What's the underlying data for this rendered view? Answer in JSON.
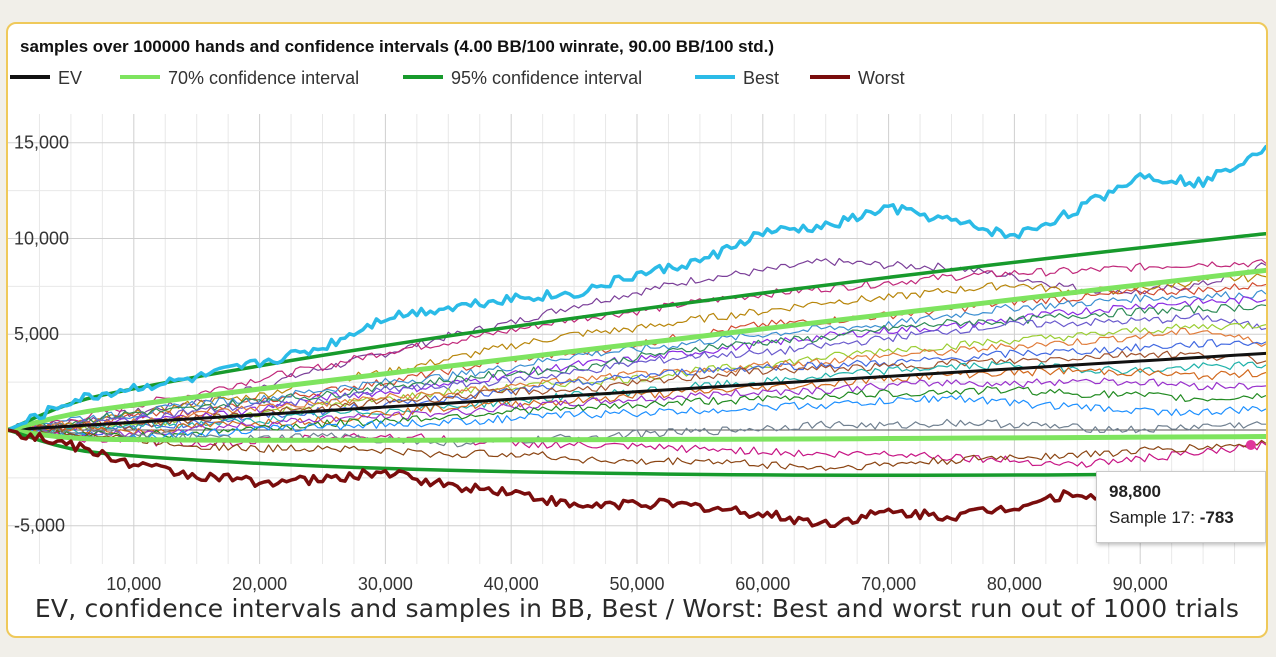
{
  "chart_data": {
    "type": "line",
    "title": "samples over 100000 hands and confidence intervals (4.00 BB/100 winrate, 90.00 BB/100 std.)",
    "caption": "EV, confidence intervals and samples in BB, Best / Worst: Best and worst run out of 1000 trials",
    "xlabel": "",
    "ylabel": "",
    "xlim": [
      0,
      100000
    ],
    "ylim": [
      -7000,
      16500
    ],
    "x_ticks": [
      10000,
      20000,
      30000,
      40000,
      50000,
      60000,
      70000,
      80000,
      90000
    ],
    "x_tick_labels": [
      "10,000",
      "20,000",
      "30,000",
      "40,000",
      "50,000",
      "60,000",
      "70,000",
      "80,000",
      "90,000"
    ],
    "y_ticks": [
      -5000,
      0,
      5000,
      10000,
      15000
    ],
    "y_tick_labels": [
      "-5,000",
      "0",
      "5,000",
      "10,000",
      "15,000"
    ],
    "grid": true,
    "legend_position": "top-left",
    "x": [
      0,
      5000,
      10000,
      15000,
      20000,
      25000,
      30000,
      35000,
      40000,
      45000,
      50000,
      55000,
      60000,
      65000,
      70000,
      75000,
      80000,
      85000,
      90000,
      95000,
      100000
    ],
    "series": [
      {
        "name": "EV",
        "color": "#111111",
        "values": [
          0,
          200,
          400,
          600,
          800,
          1000,
          1200,
          1400,
          1600,
          1800,
          2000,
          2200,
          2400,
          2600,
          2800,
          3000,
          3200,
          3400,
          3600,
          3800,
          4000
        ]
      },
      {
        "name": "70% confidence interval",
        "color": "#7ee45f",
        "values": [
          0,
          860,
          1310,
          1730,
          2140,
          2540,
          2940,
          3330,
          3720,
          4110,
          4500,
          4890,
          5280,
          5660,
          6050,
          6430,
          6810,
          7200,
          7580,
          7960,
          8340
        ]
      },
      {
        "name": "",
        "color": "#7ee45f",
        "values": [
          0,
          -460,
          -510,
          -530,
          -540,
          -540,
          -540,
          -530,
          -520,
          -510,
          -500,
          -490,
          -480,
          -460,
          -450,
          -430,
          -410,
          -400,
          -380,
          -360,
          -340
        ]
      },
      {
        "name": "95% confidence interval",
        "color": "#179a2c",
        "values": [
          0,
          1480,
          2160,
          2780,
          3350,
          3900,
          4410,
          4910,
          5380,
          5840,
          6290,
          6720,
          7150,
          7560,
          7970,
          8360,
          8760,
          9140,
          9510,
          9890,
          10250
        ]
      },
      {
        "name": "",
        "color": "#179a2c",
        "values": [
          0,
          -1080,
          -1360,
          -1580,
          -1750,
          -1900,
          -2010,
          -2110,
          -2180,
          -2240,
          -2290,
          -2320,
          -2350,
          -2360,
          -2370,
          -2360,
          -2360,
          -2340,
          -2310,
          -2290,
          -2250
        ]
      },
      {
        "name": "Best",
        "color": "#2bbbe7",
        "values": [
          0,
          1500,
          2200,
          2700,
          3500,
          4300,
          5900,
          6400,
          6900,
          7100,
          8100,
          8800,
          10300,
          10600,
          11600,
          10900,
          10100,
          11500,
          13300,
          12900,
          14800
        ]
      },
      {
        "name": "Worst",
        "color": "#7a0d0d",
        "values": [
          0,
          -800,
          -1800,
          -2400,
          -2700,
          -2600,
          -2200,
          -2900,
          -3200,
          -4000,
          -3800,
          -4000,
          -4400,
          -4900,
          -4300,
          -4500,
          -4000,
          -3200,
          -4900,
          -4700,
          -5000
        ]
      }
    ],
    "samples": [
      {
        "color": "#7b3f99",
        "values": [
          0,
          400,
          900,
          1500,
          2300,
          3200,
          4000,
          4900,
          5600,
          6500,
          7200,
          7900,
          8300,
          8800,
          8600,
          8500,
          8000,
          7400,
          7200,
          7600,
          8600
        ]
      },
      {
        "color": "#c0287a",
        "values": [
          0,
          500,
          1300,
          1900,
          2700,
          3300,
          4100,
          4600,
          5200,
          5800,
          6200,
          6700,
          7100,
          7400,
          7700,
          8000,
          8200,
          8300,
          8500,
          8700,
          8700
        ]
      },
      {
        "color": "#b8860b",
        "values": [
          0,
          300,
          800,
          1400,
          1800,
          2600,
          3000,
          3700,
          4400,
          5000,
          5300,
          5800,
          6200,
          6700,
          6900,
          7300,
          7600,
          7200,
          7400,
          7800,
          8000
        ]
      },
      {
        "color": "#d14a2f",
        "values": [
          0,
          200,
          700,
          900,
          1500,
          2000,
          2500,
          3100,
          3700,
          4000,
          4500,
          5000,
          5500,
          5700,
          6000,
          6300,
          6700,
          6900,
          7200,
          7300,
          7600
        ]
      },
      {
        "color": "#3c8fd1",
        "values": [
          0,
          600,
          800,
          1400,
          1600,
          2100,
          2500,
          2800,
          3300,
          3900,
          4200,
          4600,
          5000,
          5300,
          5500,
          6000,
          6400,
          6600,
          6900,
          7000,
          7100
        ]
      },
      {
        "color": "#8a2be2",
        "values": [
          0,
          100,
          500,
          700,
          1100,
          1700,
          2000,
          2400,
          2900,
          3400,
          3700,
          4100,
          4500,
          4900,
          5200,
          5400,
          5800,
          6200,
          6500,
          6700,
          6800
        ]
      },
      {
        "color": "#2e8b57",
        "values": [
          0,
          400,
          900,
          1100,
          1600,
          1800,
          2300,
          2600,
          3000,
          3200,
          3800,
          4300,
          4600,
          4800,
          5300,
          5600,
          5700,
          6000,
          6200,
          6300,
          6500
        ]
      },
      {
        "color": "#6a5acd",
        "values": [
          0,
          300,
          600,
          1000,
          1300,
          1500,
          2100,
          2300,
          2600,
          3000,
          3500,
          3900,
          4000,
          4400,
          4800,
          5200,
          5500,
          5600,
          5700,
          5900,
          5300
        ]
      },
      {
        "color": "#9acd32",
        "values": [
          0,
          100,
          300,
          500,
          900,
          1300,
          1600,
          2000,
          2200,
          2500,
          2700,
          3100,
          3400,
          3800,
          4200,
          4400,
          4700,
          4900,
          5200,
          5400,
          5500
        ]
      },
      {
        "color": "#e07b39",
        "values": [
          0,
          300,
          400,
          800,
          1200,
          1400,
          1700,
          1900,
          2300,
          2600,
          2900,
          3000,
          3400,
          3600,
          3900,
          4100,
          4400,
          4600,
          4900,
          5200,
          4500
        ]
      },
      {
        "color": "#4169e1",
        "values": [
          0,
          -200,
          100,
          400,
          700,
          1000,
          1300,
          1700,
          2000,
          2400,
          2800,
          3100,
          3300,
          3400,
          3500,
          3700,
          4000,
          4100,
          4300,
          4500,
          4600
        ]
      },
      {
        "color": "#a0522d",
        "values": [
          0,
          200,
          200,
          600,
          900,
          1100,
          1500,
          1700,
          2000,
          2100,
          2400,
          2800,
          3100,
          3200,
          3300,
          3500,
          3600,
          3800,
          4000,
          3900,
          3600
        ]
      },
      {
        "color": "#20b2aa",
        "values": [
          0,
          -100,
          200,
          300,
          500,
          800,
          1000,
          1200,
          1500,
          1800,
          2000,
          2300,
          2500,
          2800,
          3100,
          3300,
          3400,
          3200,
          3100,
          3300,
          3400
        ]
      },
      {
        "color": "#d2691e",
        "values": [
          0,
          100,
          -100,
          200,
          400,
          500,
          900,
          1200,
          1400,
          1500,
          1800,
          2000,
          2200,
          2400,
          2700,
          2900,
          3000,
          3100,
          3000,
          2800,
          3000
        ]
      },
      {
        "color": "#9932cc",
        "values": [
          0,
          -300,
          -200,
          100,
          300,
          600,
          700,
          900,
          1200,
          1400,
          1600,
          1800,
          2000,
          2100,
          2300,
          2500,
          2400,
          2600,
          2500,
          2300,
          2300
        ]
      },
      {
        "color": "#228b22",
        "values": [
          0,
          -200,
          -300,
          -100,
          100,
          300,
          500,
          700,
          1000,
          1100,
          1300,
          1500,
          1600,
          1800,
          1900,
          2000,
          2100,
          1900,
          1800,
          1600,
          1800
        ]
      },
      {
        "color": "#c71585",
        "values": [
          0,
          -400,
          -600,
          -700,
          -600,
          -400,
          -300,
          -500,
          -700,
          -800,
          -900,
          -1000,
          -1100,
          -1300,
          -1200,
          -1400,
          -1600,
          -1800,
          -1500,
          -1200,
          -783
        ]
      },
      {
        "color": "#1e90ff",
        "values": [
          0,
          -300,
          -400,
          -200,
          0,
          200,
          300,
          400,
          600,
          800,
          900,
          1000,
          1200,
          1300,
          1500,
          1700,
          1400,
          1200,
          1000,
          900,
          1100
        ]
      },
      {
        "color": "#8b4513",
        "values": [
          0,
          -100,
          -500,
          -800,
          -1000,
          -900,
          -1100,
          -1300,
          -1200,
          -1500,
          -1700,
          -1600,
          -1800,
          -2000,
          -1800,
          -1600,
          -1400,
          -1300,
          -1100,
          -900,
          -700
        ]
      },
      {
        "color": "#708090",
        "values": [
          0,
          0,
          -200,
          -400,
          -500,
          -300,
          -500,
          -700,
          -600,
          -400,
          -200,
          -100,
          100,
          300,
          200,
          400,
          300,
          100,
          0,
          200,
          300
        ]
      }
    ]
  },
  "tooltip": {
    "x_label": "98,800",
    "sample_label": "Sample 17: ",
    "value": "-783"
  }
}
